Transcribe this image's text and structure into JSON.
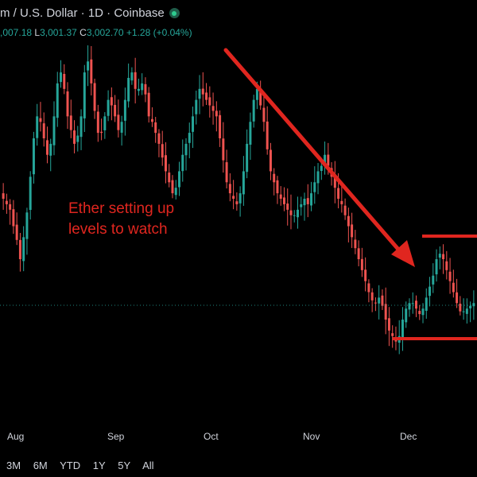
{
  "header": {
    "title": "m / U.S. Dollar · 1D · Coinbase",
    "status_icon": "market-open-dot-icon",
    "status_color": "#2ecc8f"
  },
  "ohlc": {
    "open": ",007.18",
    "low_label": "L",
    "low": "3,001.37",
    "close_label": "C",
    "close": "3,002.70",
    "change": "+1.28 (+0.04%)"
  },
  "annotation": {
    "line1": "Ether setting up",
    "line2": "levels to watch"
  },
  "range_buttons": [
    "3M",
    "6M",
    "YTD",
    "1Y",
    "5Y",
    "All"
  ],
  "colors": {
    "up": "#26a69a",
    "down": "#ef5350",
    "annotation": "#e0261f",
    "price_line": "#26a69a"
  },
  "chart_data": {
    "type": "candlestick",
    "x_ticks": [
      "Aug",
      "Sep",
      "Oct",
      "Nov",
      "Dec"
    ],
    "trend": "downtrend from early October into a range",
    "closes": [
      3400,
      3380,
      3360,
      3300,
      3250,
      3180,
      3260,
      3350,
      3480,
      3620,
      3700,
      3680,
      3620,
      3560,
      3600,
      3700,
      3820,
      3860,
      3800,
      3700,
      3650,
      3600,
      3630,
      3700,
      3860,
      3900,
      3820,
      3720,
      3640,
      3640,
      3700,
      3760,
      3740,
      3700,
      3650,
      3680,
      3760,
      3840,
      3860,
      3800,
      3800,
      3820,
      3780,
      3700,
      3680,
      3640,
      3600,
      3550,
      3500,
      3460,
      3420,
      3440,
      3500,
      3560,
      3600,
      3640,
      3700,
      3760,
      3800,
      3780,
      3760,
      3740,
      3720,
      3700,
      3620,
      3540,
      3460,
      3420,
      3400,
      3380,
      3420,
      3500,
      3600,
      3680,
      3760,
      3800,
      3740,
      3680,
      3580,
      3500,
      3460,
      3420,
      3400,
      3380,
      3360,
      3340,
      3340,
      3360,
      3380,
      3400,
      3380,
      3420,
      3460,
      3500,
      3520,
      3560,
      3520,
      3480,
      3440,
      3400,
      3380,
      3340,
      3300,
      3260,
      3220,
      3180,
      3140,
      3100,
      3060,
      3030,
      3020,
      3040,
      3010,
      2960,
      2920,
      2900,
      2880,
      2900,
      2960,
      3000,
      3020,
      3020,
      3000,
      2980,
      3000,
      3040,
      3080,
      3120,
      3180,
      3200,
      3180,
      3140,
      3100,
      3060,
      3020,
      2990,
      2990,
      3000,
      3010,
      3020
    ]
  }
}
